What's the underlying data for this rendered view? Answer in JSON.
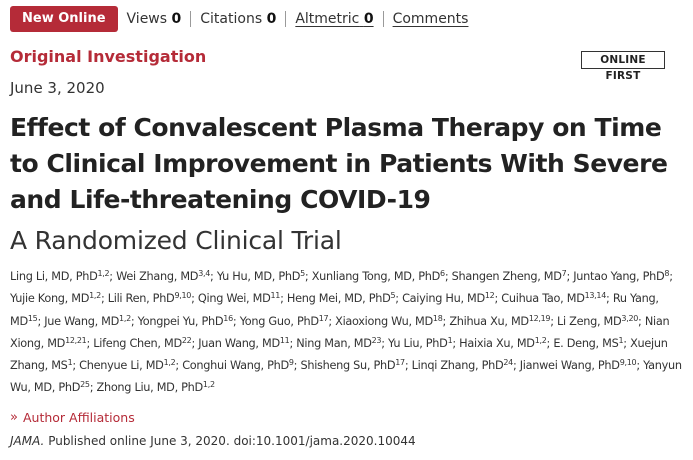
{
  "header": {
    "badge": "New Online",
    "views_label": "Views",
    "views_count": "0",
    "citations_label": "Citations",
    "citations_count": "0",
    "altmetric_label": "Altmetric",
    "altmetric_count": "0",
    "comments_label": "Comments"
  },
  "article": {
    "section": "Original Investigation",
    "online_first_badge": "ONLINE FIRST",
    "date": "June 3, 2020",
    "title": "Effect of Convalescent Plasma Therapy on Time to Clinical Improvement in Patients With Severe and Life-threatening COVID-19",
    "subtitle": "A Randomized Clinical Trial",
    "authors": [
      {
        "name": "Ling Li, MD, PhD",
        "sup": "1,2"
      },
      {
        "name": "Wei Zhang, MD",
        "sup": "3,4"
      },
      {
        "name": "Yu Hu, MD, PhD",
        "sup": "5"
      },
      {
        "name": "Xunliang Tong, MD, PhD",
        "sup": "6"
      },
      {
        "name": "Shangen Zheng, MD",
        "sup": "7"
      },
      {
        "name": "Juntao Yang, PhD",
        "sup": "8"
      },
      {
        "name": "Yujie Kong, MD",
        "sup": "1,2"
      },
      {
        "name": "Lili Ren, PhD",
        "sup": "9,10"
      },
      {
        "name": "Qing Wei, MD",
        "sup": "11"
      },
      {
        "name": "Heng Mei, MD, PhD",
        "sup": "5"
      },
      {
        "name": "Caiying Hu, MD",
        "sup": "12"
      },
      {
        "name": "Cuihua Tao, MD",
        "sup": "13,14"
      },
      {
        "name": "Ru Yang, MD",
        "sup": "15"
      },
      {
        "name": "Jue Wang, MD",
        "sup": "1,2"
      },
      {
        "name": "Yongpei Yu, PhD",
        "sup": "16"
      },
      {
        "name": "Yong Guo, PhD",
        "sup": "17"
      },
      {
        "name": "Xiaoxiong Wu, MD",
        "sup": "18"
      },
      {
        "name": "Zhihua Xu, MD",
        "sup": "12,19"
      },
      {
        "name": "Li Zeng, MD",
        "sup": "3,20"
      },
      {
        "name": "Nian Xiong, MD",
        "sup": "12,21"
      },
      {
        "name": "Lifeng Chen, MD",
        "sup": "22"
      },
      {
        "name": "Juan Wang, MD",
        "sup": "11"
      },
      {
        "name": "Ning Man, MD",
        "sup": "23"
      },
      {
        "name": "Yu Liu, PhD",
        "sup": "1"
      },
      {
        "name": "Haixia Xu, MD",
        "sup": "1,2"
      },
      {
        "name": "E. Deng, MS",
        "sup": "1"
      },
      {
        "name": "Xuejun Zhang, MS",
        "sup": "1"
      },
      {
        "name": "Chenyue Li, MD",
        "sup": "1,2"
      },
      {
        "name": "Conghui Wang, PhD",
        "sup": "9"
      },
      {
        "name": "Shisheng Su, PhD",
        "sup": "17"
      },
      {
        "name": "Linqi Zhang, PhD",
        "sup": "24"
      },
      {
        "name": "Jianwei Wang, PhD",
        "sup": "9,10"
      },
      {
        "name": "Yanyun Wu, MD, PhD",
        "sup": "25"
      },
      {
        "name": "Zhong Liu, MD, PhD",
        "sup": "1,2"
      }
    ],
    "affiliations_link": "Author Affiliations",
    "journal": "JAMA.",
    "citation_text": "Published online June 3, 2020. doi:10.1001/jama.2020.10044"
  },
  "colors": {
    "accent": "#b52b38",
    "text": "#222222"
  }
}
